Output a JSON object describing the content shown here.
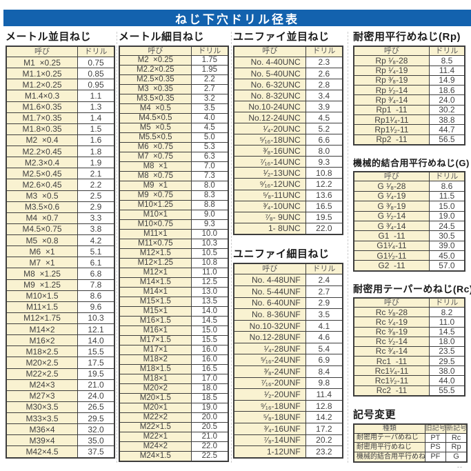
{
  "titlebar": {
    "title": "ねじ下穴ドリル径表"
  },
  "footer": {
    "mark": "--"
  },
  "sections": {
    "metric_coarse": {
      "title": "メートル並目ねじ",
      "columns": [
        "呼び",
        "ドリル"
      ],
      "rows": [
        [
          "M1  ×0.25",
          "0.75"
        ],
        [
          "M1.1×0.25",
          "0.85"
        ],
        [
          "M1.2×0.25",
          "0.95"
        ],
        [
          "M1.4×0.3",
          "1.1"
        ],
        [
          "M1.6×0.35",
          "1.3"
        ],
        [
          "M1.7×0.35",
          "1.4"
        ],
        [
          "M1.8×0.35",
          "1.5"
        ],
        [
          "M2  ×0.4",
          "1.6"
        ],
        [
          "M2.2×0.45",
          "1.8"
        ],
        [
          "M2.3×0.4",
          "1.9"
        ],
        [
          "M2.5×0.45",
          "2.1"
        ],
        [
          "M2.6×0.45",
          "2.2"
        ],
        [
          "M3  ×0.5",
          "2.5"
        ],
        [
          "M3.5×0.6",
          "2.9"
        ],
        [
          "M4  ×0.7",
          "3.3"
        ],
        [
          "M4.5×0.75",
          "3.8"
        ],
        [
          "M5  ×0.8",
          "4.2"
        ],
        [
          "M6  ×1",
          "5.1"
        ],
        [
          "M7  ×1",
          "6.1"
        ],
        [
          "M8  ×1.25",
          "6.8"
        ],
        [
          "M9  ×1.25",
          "7.8"
        ],
        [
          "M10×1.5",
          "8.6"
        ],
        [
          "M11×1.5",
          "9.6"
        ],
        [
          "M12×1.75",
          "10.3"
        ],
        [
          "M14×2",
          "12.1"
        ],
        [
          "M16×2",
          "14.0"
        ],
        [
          "M18×2.5",
          "15.5"
        ],
        [
          "M20×2.5",
          "17.5"
        ],
        [
          "M22×2.5",
          "19.5"
        ],
        [
          "M24×3",
          "21.0"
        ],
        [
          "M27×3",
          "24.0"
        ],
        [
          "M30×3.5",
          "26.5"
        ],
        [
          "M33×3.5",
          "29.5"
        ],
        [
          "M36×4",
          "32.0"
        ],
        [
          "M39×4",
          "35.0"
        ],
        [
          "M42×4.5",
          "37.5"
        ]
      ]
    },
    "metric_fine": {
      "title": "メートル細目ねじ",
      "columns": [
        "呼び",
        "ドリル"
      ],
      "rows": [
        [
          "M2  ×0.25",
          "1.75"
        ],
        [
          "M2.2×0.25",
          "1.95"
        ],
        [
          "M2.5×0.35",
          "2.2"
        ],
        [
          "M3  ×0.35",
          "2.7"
        ],
        [
          "M3.5×0.35",
          "3.2"
        ],
        [
          "M4  ×0.5",
          "3.5"
        ],
        [
          "M4.5×0.5",
          "4.0"
        ],
        [
          "M5  ×0.5",
          "4.5"
        ],
        [
          "M5.5×0.5",
          "5.0"
        ],
        [
          "M6  ×0.75",
          "5.3"
        ],
        [
          "M7  ×0.75",
          "6.3"
        ],
        [
          "M8  ×1",
          "7.0"
        ],
        [
          "M8  ×0.75",
          "7.3"
        ],
        [
          "M9  ×1",
          "8.0"
        ],
        [
          "M9  ×0.75",
          "8.3"
        ],
        [
          "M10×1.25",
          "8.8"
        ],
        [
          "M10×1",
          "9.0"
        ],
        [
          "M10×0.75",
          "9.3"
        ],
        [
          "M11×1",
          "10.0"
        ],
        [
          "M11×0.75",
          "10.3"
        ],
        [
          "M12×1.5",
          "10.5"
        ],
        [
          "M12×1.25",
          "10.8"
        ],
        [
          "M12×1",
          "11.0"
        ],
        [
          "M14×1.5",
          "12.5"
        ],
        [
          "M14×1",
          "13.0"
        ],
        [
          "M15×1.5",
          "13.5"
        ],
        [
          "M15×1",
          "14.0"
        ],
        [
          "M16×1.5",
          "14.5"
        ],
        [
          "M16×1",
          "15.0"
        ],
        [
          "M17×1.5",
          "15.5"
        ],
        [
          "M17×1",
          "16.0"
        ],
        [
          "M18×2",
          "16.0"
        ],
        [
          "M18×1.5",
          "16.5"
        ],
        [
          "M18×1",
          "17.0"
        ],
        [
          "M20×2",
          "18.0"
        ],
        [
          "M20×1.5",
          "18.5"
        ],
        [
          "M20×1",
          "19.0"
        ],
        [
          "M22×2",
          "20.0"
        ],
        [
          "M22×1.5",
          "20.5"
        ],
        [
          "M22×1",
          "21.0"
        ],
        [
          "M24×2",
          "22.0"
        ],
        [
          "M24×1.5",
          "22.5"
        ]
      ]
    },
    "unified_coarse": {
      "title": "ユニファイ並目ねじ",
      "columns": [
        "呼び",
        "ドリル"
      ],
      "rows": [
        [
          "No. 4-40UNC",
          "2.3"
        ],
        [
          "No. 5-40UNC",
          "2.6"
        ],
        [
          "No. 6-32UNC",
          "2.8"
        ],
        [
          "No. 8-32UNC",
          "3.4"
        ],
        [
          "No.10-24UNC",
          "3.9"
        ],
        [
          "No.12-24UNC",
          "4.5"
        ],
        [
          "¹⁄₄-20UNC",
          "5.2"
        ],
        [
          "⁵⁄₁₆-18UNC",
          "6.6"
        ],
        [
          "³⁄₈-16UNC",
          "8.0"
        ],
        [
          "⁷⁄₁₆-14UNC",
          "9.3"
        ],
        [
          "¹⁄₂-13UNC",
          "10.8"
        ],
        [
          "⁹⁄₁₆-12UNC",
          "12.2"
        ],
        [
          "⁵⁄₈-11UNC",
          "13.6"
        ],
        [
          "³⁄₄-10UNC",
          "16.5"
        ],
        [
          "⁷⁄₈- 9UNC",
          "19.5"
        ],
        [
          "1- 8UNC",
          "22.0"
        ]
      ]
    },
    "unified_fine": {
      "title": "ユニファイ細目ねじ",
      "columns": [
        "呼び",
        "ドリル"
      ],
      "rows": [
        [
          "No. 4-48UNF",
          "2.4"
        ],
        [
          "No. 5-44UNF",
          "2.7"
        ],
        [
          "No. 6-40UNF",
          "2.9"
        ],
        [
          "No. 8-36UNF",
          "3.5"
        ],
        [
          "No.10-32UNF",
          "4.1"
        ],
        [
          "No.12-28UNF",
          "4.6"
        ],
        [
          "¹⁄₄-28UNF",
          "5.4"
        ],
        [
          "⁵⁄₁₆-24UNF",
          "6.9"
        ],
        [
          "³⁄₈-24UNF",
          "8.4"
        ],
        [
          "⁷⁄₁₆-20UNF",
          "9.8"
        ],
        [
          "¹⁄₂-20UNF",
          "11.4"
        ],
        [
          "⁹⁄₁₆-18UNF",
          "12.8"
        ],
        [
          "⁵⁄₈-18UNF",
          "14.2"
        ],
        [
          "³⁄₄-16UNF",
          "17.2"
        ],
        [
          "⁷⁄₈-14UNF",
          "20.2"
        ],
        [
          "1-12UNF",
          "23.2"
        ]
      ]
    },
    "rp": {
      "title": "耐密用平行めねじ(Rp)",
      "columns": [
        "呼び",
        "ドリル"
      ],
      "rows": [
        [
          "Rp ¹⁄₈-28",
          "8.5"
        ],
        [
          "Rp ¹⁄₄-19",
          "11.4"
        ],
        [
          "Rp ³⁄₈-19",
          "14.9"
        ],
        [
          "Rp ¹⁄₂-14",
          "18.6"
        ],
        [
          "Rp ³⁄₄-14",
          "24.0"
        ],
        [
          "Rp1  -11",
          "30.2"
        ],
        [
          "Rp1¹⁄₄-11",
          "38.8"
        ],
        [
          "Rp1¹⁄₂-11",
          "44.7"
        ],
        [
          "Rp2  -11",
          "56.5"
        ]
      ]
    },
    "g": {
      "title": "機械的結合用平行めねじ(G)",
      "columns": [
        "呼び",
        "ドリル"
      ],
      "rows": [
        [
          "G ¹⁄₈-28",
          "8.6"
        ],
        [
          "G ¹⁄₄-19",
          "11.5"
        ],
        [
          "G ³⁄₈-19",
          "15.0"
        ],
        [
          "G ¹⁄₂-14",
          "19.0"
        ],
        [
          "G ³⁄₄-14",
          "24.5"
        ],
        [
          "G1  -11",
          "30.5"
        ],
        [
          "G1¹⁄₄-11",
          "39.0"
        ],
        [
          "G1¹⁄₂-11",
          "45.0"
        ],
        [
          "G2  -11",
          "57.0"
        ]
      ]
    },
    "rc": {
      "title": "耐密用テーパーめねじ(Rc)",
      "columns": [
        "呼び",
        "ドリル"
      ],
      "rows": [
        [
          "Rc ¹⁄₈-28",
          "8.2"
        ],
        [
          "Rc ¹⁄₄-19",
          "11.0"
        ],
        [
          "Rc ³⁄₈-19",
          "14.5"
        ],
        [
          "Rc ¹⁄₂-14",
          "18.0"
        ],
        [
          "Rc ³⁄₄-14",
          "23.5"
        ],
        [
          "Rc1  -11",
          "29.5"
        ],
        [
          "Rc1¹⁄₄-11",
          "38.0"
        ],
        [
          "Rc1¹⁄₂-11",
          "44.0"
        ],
        [
          "Rc2  -11",
          "55.5"
        ]
      ]
    },
    "symbol_change": {
      "title": "記号変更",
      "columns": [
        "種類",
        "旧記号",
        "新記号"
      ],
      "rows": [
        [
          "耐密用テーパめねじ",
          "PT",
          "Rc"
        ],
        [
          "耐密用平行めねじ",
          "PS",
          "Rp"
        ],
        [
          "機械的結合用平行めねじ",
          "PF",
          "G"
        ]
      ]
    }
  }
}
